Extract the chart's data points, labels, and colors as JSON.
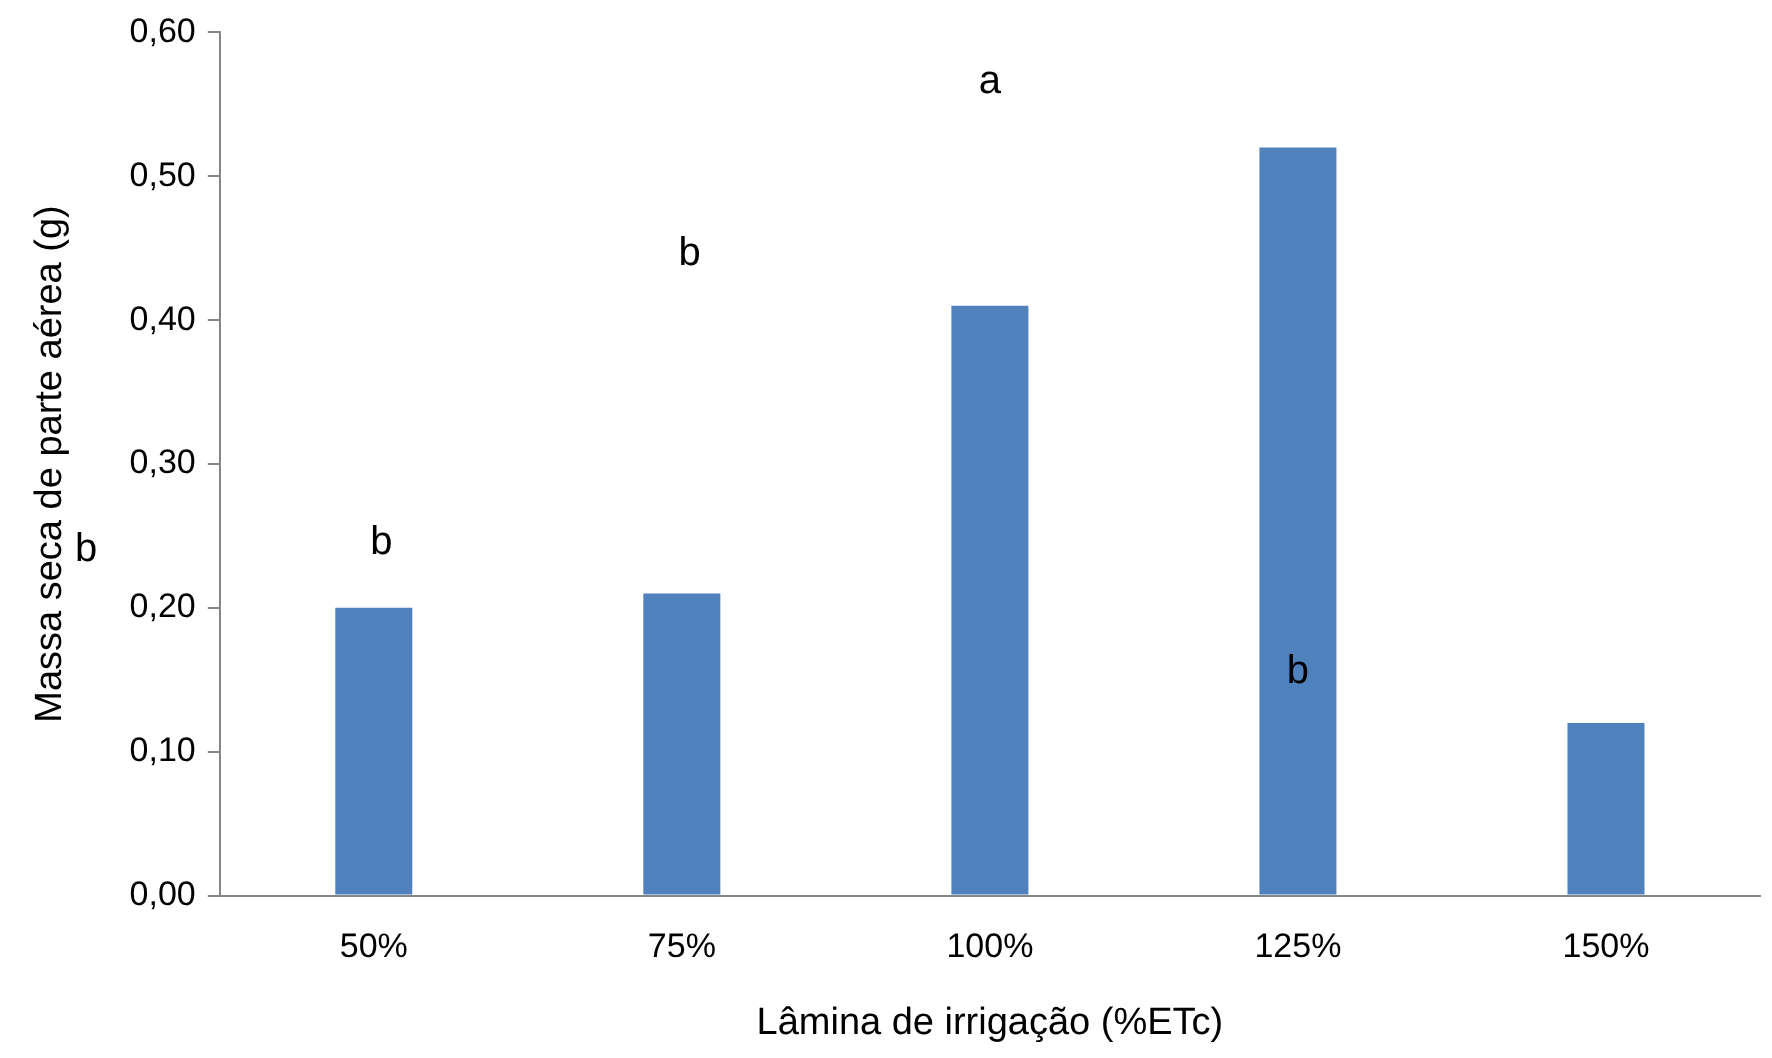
{
  "chart_data": {
    "type": "bar",
    "xlabel": "Lâmina de irrigação (%ETc)",
    "ylabel": "Massa seca de parte aérea (g)",
    "categories": [
      "50%",
      "75%",
      "100%",
      "125%",
      "150%"
    ],
    "values": [
      0.2,
      0.21,
      0.41,
      0.52,
      0.12
    ],
    "color": "#4f81bd",
    "ylim": [
      0,
      0.6
    ],
    "yticks": [
      {
        "value": 0,
        "label": "0,00"
      },
      {
        "value": 0.1,
        "label": "0,10"
      },
      {
        "value": 0.2,
        "label": "0,20"
      },
      {
        "value": 0.3,
        "label": "0,30"
      },
      {
        "value": 0.4,
        "label": "0,40"
      },
      {
        "value": 0.5,
        "label": "0,50"
      },
      {
        "value": 0.6,
        "label": "0,60"
      }
    ],
    "grid": false,
    "legend": false,
    "annotations": [
      "b",
      "b",
      "a",
      "b",
      "b"
    ]
  }
}
